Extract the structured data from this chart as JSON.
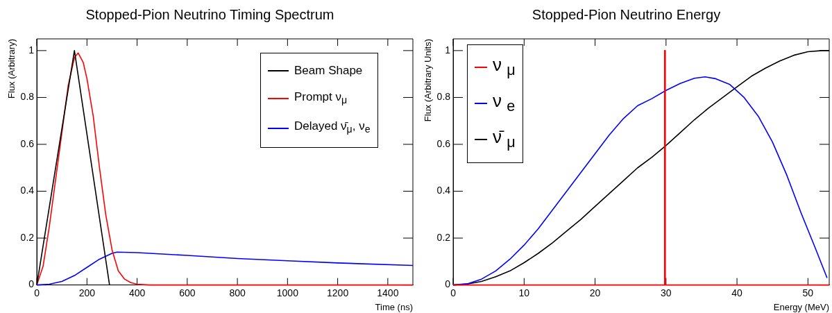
{
  "chart_data": [
    {
      "type": "line",
      "title": "Stopped-Pion Neutrino Timing Spectrum",
      "xlabel": "Time (ns)",
      "ylabel": "Flux (Arbitrary)",
      "xlim": [
        0,
        1500
      ],
      "xticks": [
        0,
        200,
        400,
        600,
        800,
        1000,
        1200,
        1400
      ],
      "ylim": [
        0,
        1.05
      ],
      "yticks": [
        0,
        0.2,
        0.4,
        0.6,
        0.8,
        1
      ],
      "grid": false,
      "legend": "top right",
      "marker": "none",
      "line_style": "solid",
      "series": [
        {
          "name": "Beam Shape",
          "color": "#000000",
          "x": [
            0,
            150,
            290
          ],
          "values": [
            0,
            1,
            0
          ]
        },
        {
          "name": "Prompt ν$_{μ}$",
          "color": "#ff0000",
          "x": [
            0,
            25,
            50,
            75,
            100,
            125,
            150,
            165,
            185,
            200,
            225,
            250,
            275,
            300,
            325,
            350,
            375,
            400,
            450,
            1500
          ],
          "values": [
            0,
            0.08,
            0.25,
            0.45,
            0.65,
            0.85,
            0.97,
            0.99,
            0.95,
            0.88,
            0.72,
            0.5,
            0.3,
            0.15,
            0.06,
            0.025,
            0.01,
            0.003,
            0,
            0
          ]
        },
        {
          "name": "Delayed ν̄$_{μ}$, ν$_{e}$",
          "color": "#0000ff",
          "x": [
            0,
            50,
            100,
            150,
            200,
            250,
            300,
            320,
            400,
            600,
            800,
            1000,
            1200,
            1500
          ],
          "values": [
            0,
            0.003,
            0.015,
            0.04,
            0.075,
            0.11,
            0.135,
            0.14,
            0.138,
            0.126,
            0.113,
            0.103,
            0.094,
            0.083
          ]
        }
      ]
    },
    {
      "type": "line",
      "title": "Stopped-Pion Neutrino Energy",
      "xlabel": "Energy (MeV)",
      "ylabel": "Flux (Arbitrary Units)",
      "xlim": [
        0,
        53
      ],
      "xticks": [
        0,
        10,
        20,
        30,
        40,
        50
      ],
      "ylim": [
        0,
        1.05
      ],
      "yticks": [
        0,
        0.2,
        0.4,
        0.6,
        0.8,
        1
      ],
      "grid": false,
      "legend": "top left",
      "marker": "none",
      "line_style": "solid",
      "series": [
        {
          "name": "ν $_{μ}$",
          "color": "#ff0000",
          "x": [
            0,
            29.8,
            29.8,
            29.9,
            29.9,
            53
          ],
          "values": [
            0,
            0,
            1,
            1,
            0,
            0
          ]
        },
        {
          "name": "ν $_{e}$",
          "color": "#0000ff",
          "x": [
            0,
            2,
            4,
            6,
            8,
            10,
            12,
            14,
            16,
            18,
            20,
            22,
            24,
            26,
            28,
            30,
            32,
            34,
            35.5,
            37,
            39,
            41,
            43,
            45,
            47,
            49,
            51,
            52.7
          ],
          "values": [
            0,
            0.005,
            0.025,
            0.06,
            0.11,
            0.17,
            0.24,
            0.32,
            0.4,
            0.48,
            0.56,
            0.64,
            0.71,
            0.765,
            0.795,
            0.83,
            0.86,
            0.882,
            0.888,
            0.88,
            0.855,
            0.8,
            0.72,
            0.61,
            0.47,
            0.31,
            0.16,
            0.03
          ]
        },
        {
          "name": "ν̄ $_{μ}$",
          "color": "#000000",
          "x": [
            0,
            2,
            4,
            6,
            8,
            10,
            12,
            14,
            16,
            18,
            20,
            22,
            24,
            26,
            28,
            30,
            32,
            34,
            36,
            38,
            40,
            42,
            44,
            46,
            48,
            50,
            52,
            53
          ],
          "values": [
            0,
            0.004,
            0.015,
            0.035,
            0.06,
            0.095,
            0.135,
            0.18,
            0.23,
            0.28,
            0.335,
            0.39,
            0.445,
            0.5,
            0.545,
            0.595,
            0.65,
            0.705,
            0.755,
            0.8,
            0.845,
            0.89,
            0.925,
            0.955,
            0.98,
            0.995,
            1.0,
            1.0
          ]
        }
      ]
    }
  ]
}
